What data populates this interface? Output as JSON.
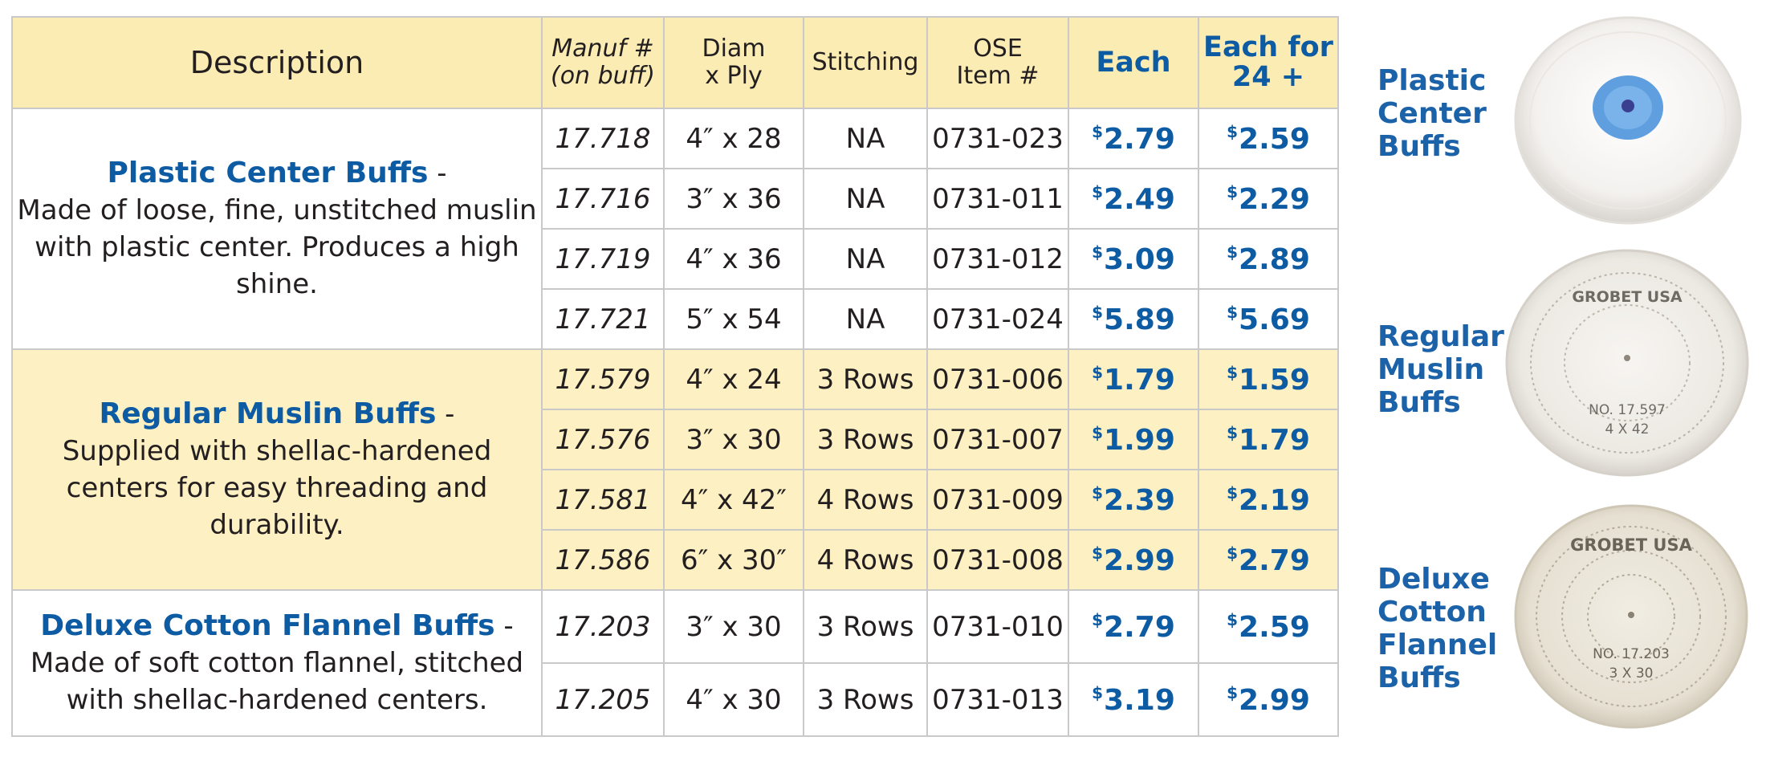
{
  "headers": {
    "description": "Description",
    "manuf_line1": "Manuf #",
    "manuf_line2": "(on buff)",
    "diam_line1": "Diam",
    "diam_line2": "x Ply",
    "stitching": "Stitching",
    "ose_line1": "OSE",
    "ose_line2": "Item #",
    "each": "Each",
    "each24_line1": "Each for",
    "each24_line2": "24 +"
  },
  "groups": [
    {
      "name": "Plastic Center Buffs",
      "dash": " -",
      "desc": "Made of loose, fine, unstitched muslin with plastic center. Produces a high shine.",
      "side_label": [
        "Plastic",
        "Center",
        "Buffs"
      ],
      "rows": [
        {
          "manuf": "17.718",
          "diam": "4″ x 28",
          "stitch": "NA",
          "ose": "0731-023",
          "each": "2.79",
          "each24": "2.59"
        },
        {
          "manuf": "17.716",
          "diam": "3″ x 36",
          "stitch": "NA",
          "ose": "0731-011",
          "each": "2.49",
          "each24": "2.29"
        },
        {
          "manuf": "17.719",
          "diam": "4″ x 36",
          "stitch": "NA",
          "ose": "0731-012",
          "each": "3.09",
          "each24": "2.89"
        },
        {
          "manuf": "17.721",
          "diam": "5″ x 54",
          "stitch": "NA",
          "ose": "0731-024",
          "each": "5.89",
          "each24": "5.69"
        }
      ]
    },
    {
      "name": "Regular Muslin Buffs",
      "dash": " -",
      "desc": "Supplied with shellac-hardened centers for easy threading and durability.",
      "side_label": [
        "Regular",
        "Muslin",
        "Buffs"
      ],
      "rows": [
        {
          "manuf": "17.579",
          "diam": "4″ x 24",
          "stitch": "3 Rows",
          "ose": "0731-006",
          "each": "1.79",
          "each24": "1.59"
        },
        {
          "manuf": "17.576",
          "diam": "3″ x 30",
          "stitch": "3 Rows",
          "ose": "0731-007",
          "each": "1.99",
          "each24": "1.79"
        },
        {
          "manuf": "17.581",
          "diam": "4″ x 42″",
          "stitch": "4 Rows",
          "ose": "0731-009",
          "each": "2.39",
          "each24": "2.19"
        },
        {
          "manuf": "17.586",
          "diam": "6″ x 30″",
          "stitch": "4 Rows",
          "ose": "0731-008",
          "each": "2.99",
          "each24": "2.79"
        }
      ]
    },
    {
      "name": "Deluxe Cotton Flannel Buffs",
      "dash": " -",
      "desc": "Made of soft cotton flannel, stitched with shellac-hardened centers.",
      "side_label": [
        "Deluxe",
        "Cotton",
        "Flannel",
        "Buffs"
      ],
      "rows": [
        {
          "manuf": "17.203",
          "diam": "3″ x 30",
          "stitch": "3 Rows",
          "ose": "0731-010",
          "each": "2.79",
          "each24": "2.59"
        },
        {
          "manuf": "17.205",
          "diam": "4″ x 30",
          "stitch": "3 Rows",
          "ose": "0731-013",
          "each": "3.19",
          "each24": "2.99"
        }
      ]
    }
  ],
  "currency_symbol": "$",
  "thumb_text": {
    "regular": [
      "GROBET USA",
      "NO. 17.597",
      "4 X 42"
    ],
    "deluxe": [
      "GROBET USA",
      "NO. 17.203",
      "3 X 30"
    ]
  },
  "colors": {
    "header_bg": "#fbecb4",
    "row_yellow": "#fdf0c2",
    "accent_blue": "#0d5ba3",
    "grid": "#c9c9c9"
  }
}
